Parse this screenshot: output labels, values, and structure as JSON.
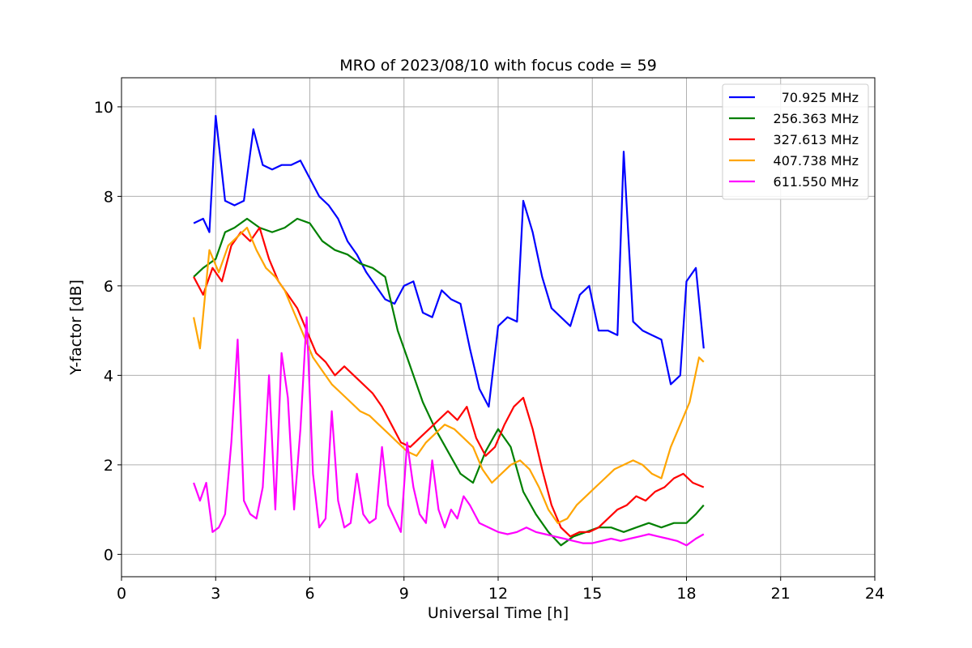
{
  "chart_data": {
    "type": "line",
    "title": "MRO of 2023/08/10 with focus code = 59",
    "xlabel": "Universal Time [h]",
    "ylabel": "Y-factor [dB]",
    "xlim": [
      0,
      24
    ],
    "ylim": [
      -0.5,
      10.65
    ],
    "xticks": [
      "0",
      "3",
      "6",
      "9",
      "12",
      "15",
      "18",
      "21",
      "24"
    ],
    "yticks": [
      "0",
      "2",
      "4",
      "6",
      "8",
      "10"
    ],
    "grid": true,
    "legend_position": "top-right",
    "series": [
      {
        "name": "70.925 MHz",
        "color": "#0000ff",
        "x": [
          2.3,
          2.6,
          2.8,
          3.0,
          3.3,
          3.6,
          3.9,
          4.2,
          4.5,
          4.8,
          5.1,
          5.4,
          5.7,
          6.0,
          6.3,
          6.6,
          6.9,
          7.2,
          7.5,
          7.8,
          8.1,
          8.4,
          8.7,
          9.0,
          9.3,
          9.6,
          9.9,
          10.2,
          10.5,
          10.8,
          11.1,
          11.4,
          11.7,
          12.0,
          12.3,
          12.6,
          12.8,
          13.1,
          13.4,
          13.7,
          14.0,
          14.3,
          14.6,
          14.9,
          15.2,
          15.5,
          15.8,
          16.0,
          16.3,
          16.6,
          16.9,
          17.2,
          17.5,
          17.8,
          18.0,
          18.3,
          18.55
        ],
        "y": [
          7.4,
          7.5,
          7.2,
          9.8,
          7.9,
          7.8,
          7.9,
          9.5,
          8.7,
          8.6,
          8.7,
          8.7,
          8.8,
          8.4,
          8.0,
          7.8,
          7.5,
          7.0,
          6.7,
          6.3,
          6.0,
          5.7,
          5.6,
          6.0,
          6.1,
          5.4,
          5.3,
          5.9,
          5.7,
          5.6,
          4.6,
          3.7,
          3.3,
          5.1,
          5.3,
          5.2,
          7.9,
          7.2,
          6.2,
          5.5,
          5.3,
          5.1,
          5.8,
          6.0,
          5.0,
          5.0,
          4.9,
          9.0,
          5.2,
          5.0,
          4.9,
          4.8,
          3.8,
          4.0,
          6.1,
          6.4,
          4.6
        ]
      },
      {
        "name": "256.363 MHz",
        "color": "#008000",
        "x": [
          2.3,
          2.6,
          3.0,
          3.3,
          3.6,
          4.0,
          4.4,
          4.8,
          5.2,
          5.6,
          6.0,
          6.4,
          6.8,
          7.2,
          7.6,
          8.0,
          8.4,
          8.8,
          9.2,
          9.6,
          10.0,
          10.4,
          10.8,
          11.2,
          11.6,
          12.0,
          12.4,
          12.8,
          13.2,
          13.6,
          14.0,
          14.4,
          14.8,
          15.2,
          15.6,
          16.0,
          16.4,
          16.8,
          17.2,
          17.6,
          18.0,
          18.3,
          18.55
        ],
        "y": [
          6.2,
          6.4,
          6.6,
          7.2,
          7.3,
          7.5,
          7.3,
          7.2,
          7.3,
          7.5,
          7.4,
          7.0,
          6.8,
          6.7,
          6.5,
          6.4,
          6.2,
          5.0,
          4.2,
          3.4,
          2.8,
          2.3,
          1.8,
          1.6,
          2.3,
          2.8,
          2.4,
          1.4,
          0.9,
          0.5,
          0.2,
          0.4,
          0.5,
          0.6,
          0.6,
          0.5,
          0.6,
          0.7,
          0.6,
          0.7,
          0.7,
          0.9,
          1.1
        ]
      },
      {
        "name": "327.613 MHz",
        "color": "#ff0000",
        "x": [
          2.3,
          2.6,
          2.9,
          3.2,
          3.5,
          3.8,
          4.1,
          4.4,
          4.7,
          5.0,
          5.3,
          5.6,
          5.9,
          6.2,
          6.5,
          6.8,
          7.1,
          7.4,
          7.7,
          8.0,
          8.3,
          8.6,
          8.9,
          9.2,
          9.5,
          9.8,
          10.1,
          10.4,
          10.7,
          11.0,
          11.3,
          11.6,
          11.9,
          12.2,
          12.5,
          12.8,
          13.1,
          13.4,
          13.7,
          14.0,
          14.3,
          14.6,
          14.9,
          15.2,
          15.5,
          15.8,
          16.1,
          16.4,
          16.7,
          17.0,
          17.3,
          17.6,
          17.9,
          18.2,
          18.55
        ],
        "y": [
          6.2,
          5.8,
          6.4,
          6.1,
          6.9,
          7.2,
          7.0,
          7.3,
          6.6,
          6.1,
          5.8,
          5.5,
          5.0,
          4.5,
          4.3,
          4.0,
          4.2,
          4.0,
          3.8,
          3.6,
          3.3,
          2.9,
          2.5,
          2.4,
          2.6,
          2.8,
          3.0,
          3.2,
          3.0,
          3.3,
          2.6,
          2.2,
          2.4,
          2.9,
          3.3,
          3.5,
          2.8,
          1.9,
          1.1,
          0.6,
          0.4,
          0.5,
          0.5,
          0.6,
          0.8,
          1.0,
          1.1,
          1.3,
          1.2,
          1.4,
          1.5,
          1.7,
          1.8,
          1.6,
          1.5
        ]
      },
      {
        "name": "407.738 MHz",
        "color": "#ffa500",
        "x": [
          2.3,
          2.5,
          2.8,
          3.1,
          3.4,
          3.7,
          4.0,
          4.3,
          4.6,
          4.9,
          5.2,
          5.5,
          5.8,
          6.1,
          6.4,
          6.7,
          7.0,
          7.3,
          7.6,
          7.9,
          8.2,
          8.5,
          8.8,
          9.1,
          9.4,
          9.7,
          10.0,
          10.3,
          10.6,
          10.9,
          11.2,
          11.5,
          11.8,
          12.1,
          12.4,
          12.7,
          13.0,
          13.3,
          13.6,
          13.9,
          14.2,
          14.5,
          14.8,
          15.1,
          15.4,
          15.7,
          16.0,
          16.3,
          16.6,
          16.9,
          17.2,
          17.5,
          17.8,
          18.1,
          18.4,
          18.55
        ],
        "y": [
          5.3,
          4.6,
          6.8,
          6.3,
          6.9,
          7.1,
          7.3,
          6.8,
          6.4,
          6.2,
          5.9,
          5.4,
          4.9,
          4.4,
          4.1,
          3.8,
          3.6,
          3.4,
          3.2,
          3.1,
          2.9,
          2.7,
          2.5,
          2.3,
          2.2,
          2.5,
          2.7,
          2.9,
          2.8,
          2.6,
          2.4,
          1.9,
          1.6,
          1.8,
          2.0,
          2.1,
          1.9,
          1.5,
          1.0,
          0.7,
          0.8,
          1.1,
          1.3,
          1.5,
          1.7,
          1.9,
          2.0,
          2.1,
          2.0,
          1.8,
          1.7,
          2.4,
          2.9,
          3.4,
          4.4,
          4.3
        ]
      },
      {
        "name": "611.550 MHz",
        "color": "#ff00ff",
        "x": [
          2.3,
          2.5,
          2.7,
          2.9,
          3.1,
          3.3,
          3.5,
          3.7,
          3.9,
          4.1,
          4.3,
          4.5,
          4.7,
          4.9,
          5.1,
          5.3,
          5.5,
          5.7,
          5.9,
          6.1,
          6.3,
          6.5,
          6.7,
          6.9,
          7.1,
          7.3,
          7.5,
          7.7,
          7.9,
          8.1,
          8.3,
          8.5,
          8.7,
          8.9,
          9.1,
          9.3,
          9.5,
          9.7,
          9.9,
          10.1,
          10.3,
          10.5,
          10.7,
          10.9,
          11.1,
          11.4,
          11.7,
          12.0,
          12.3,
          12.6,
          12.9,
          13.2,
          13.5,
          13.8,
          14.1,
          14.4,
          14.7,
          15.0,
          15.3,
          15.6,
          15.9,
          16.2,
          16.5,
          16.8,
          17.1,
          17.4,
          17.7,
          18.0,
          18.3,
          18.55
        ],
        "y": [
          1.6,
          1.2,
          1.6,
          0.5,
          0.6,
          0.9,
          2.5,
          4.8,
          1.2,
          0.9,
          0.8,
          1.5,
          4.0,
          1.0,
          4.5,
          3.5,
          1.0,
          2.8,
          5.3,
          1.8,
          0.6,
          0.8,
          3.2,
          1.2,
          0.6,
          0.7,
          1.8,
          0.9,
          0.7,
          0.8,
          2.4,
          1.1,
          0.8,
          0.5,
          2.5,
          1.5,
          0.9,
          0.7,
          2.1,
          1.0,
          0.6,
          1.0,
          0.8,
          1.3,
          1.1,
          0.7,
          0.6,
          0.5,
          0.45,
          0.5,
          0.6,
          0.5,
          0.45,
          0.4,
          0.35,
          0.3,
          0.25,
          0.25,
          0.3,
          0.35,
          0.3,
          0.35,
          0.4,
          0.45,
          0.4,
          0.35,
          0.3,
          0.2,
          0.35,
          0.45
        ]
      }
    ]
  }
}
